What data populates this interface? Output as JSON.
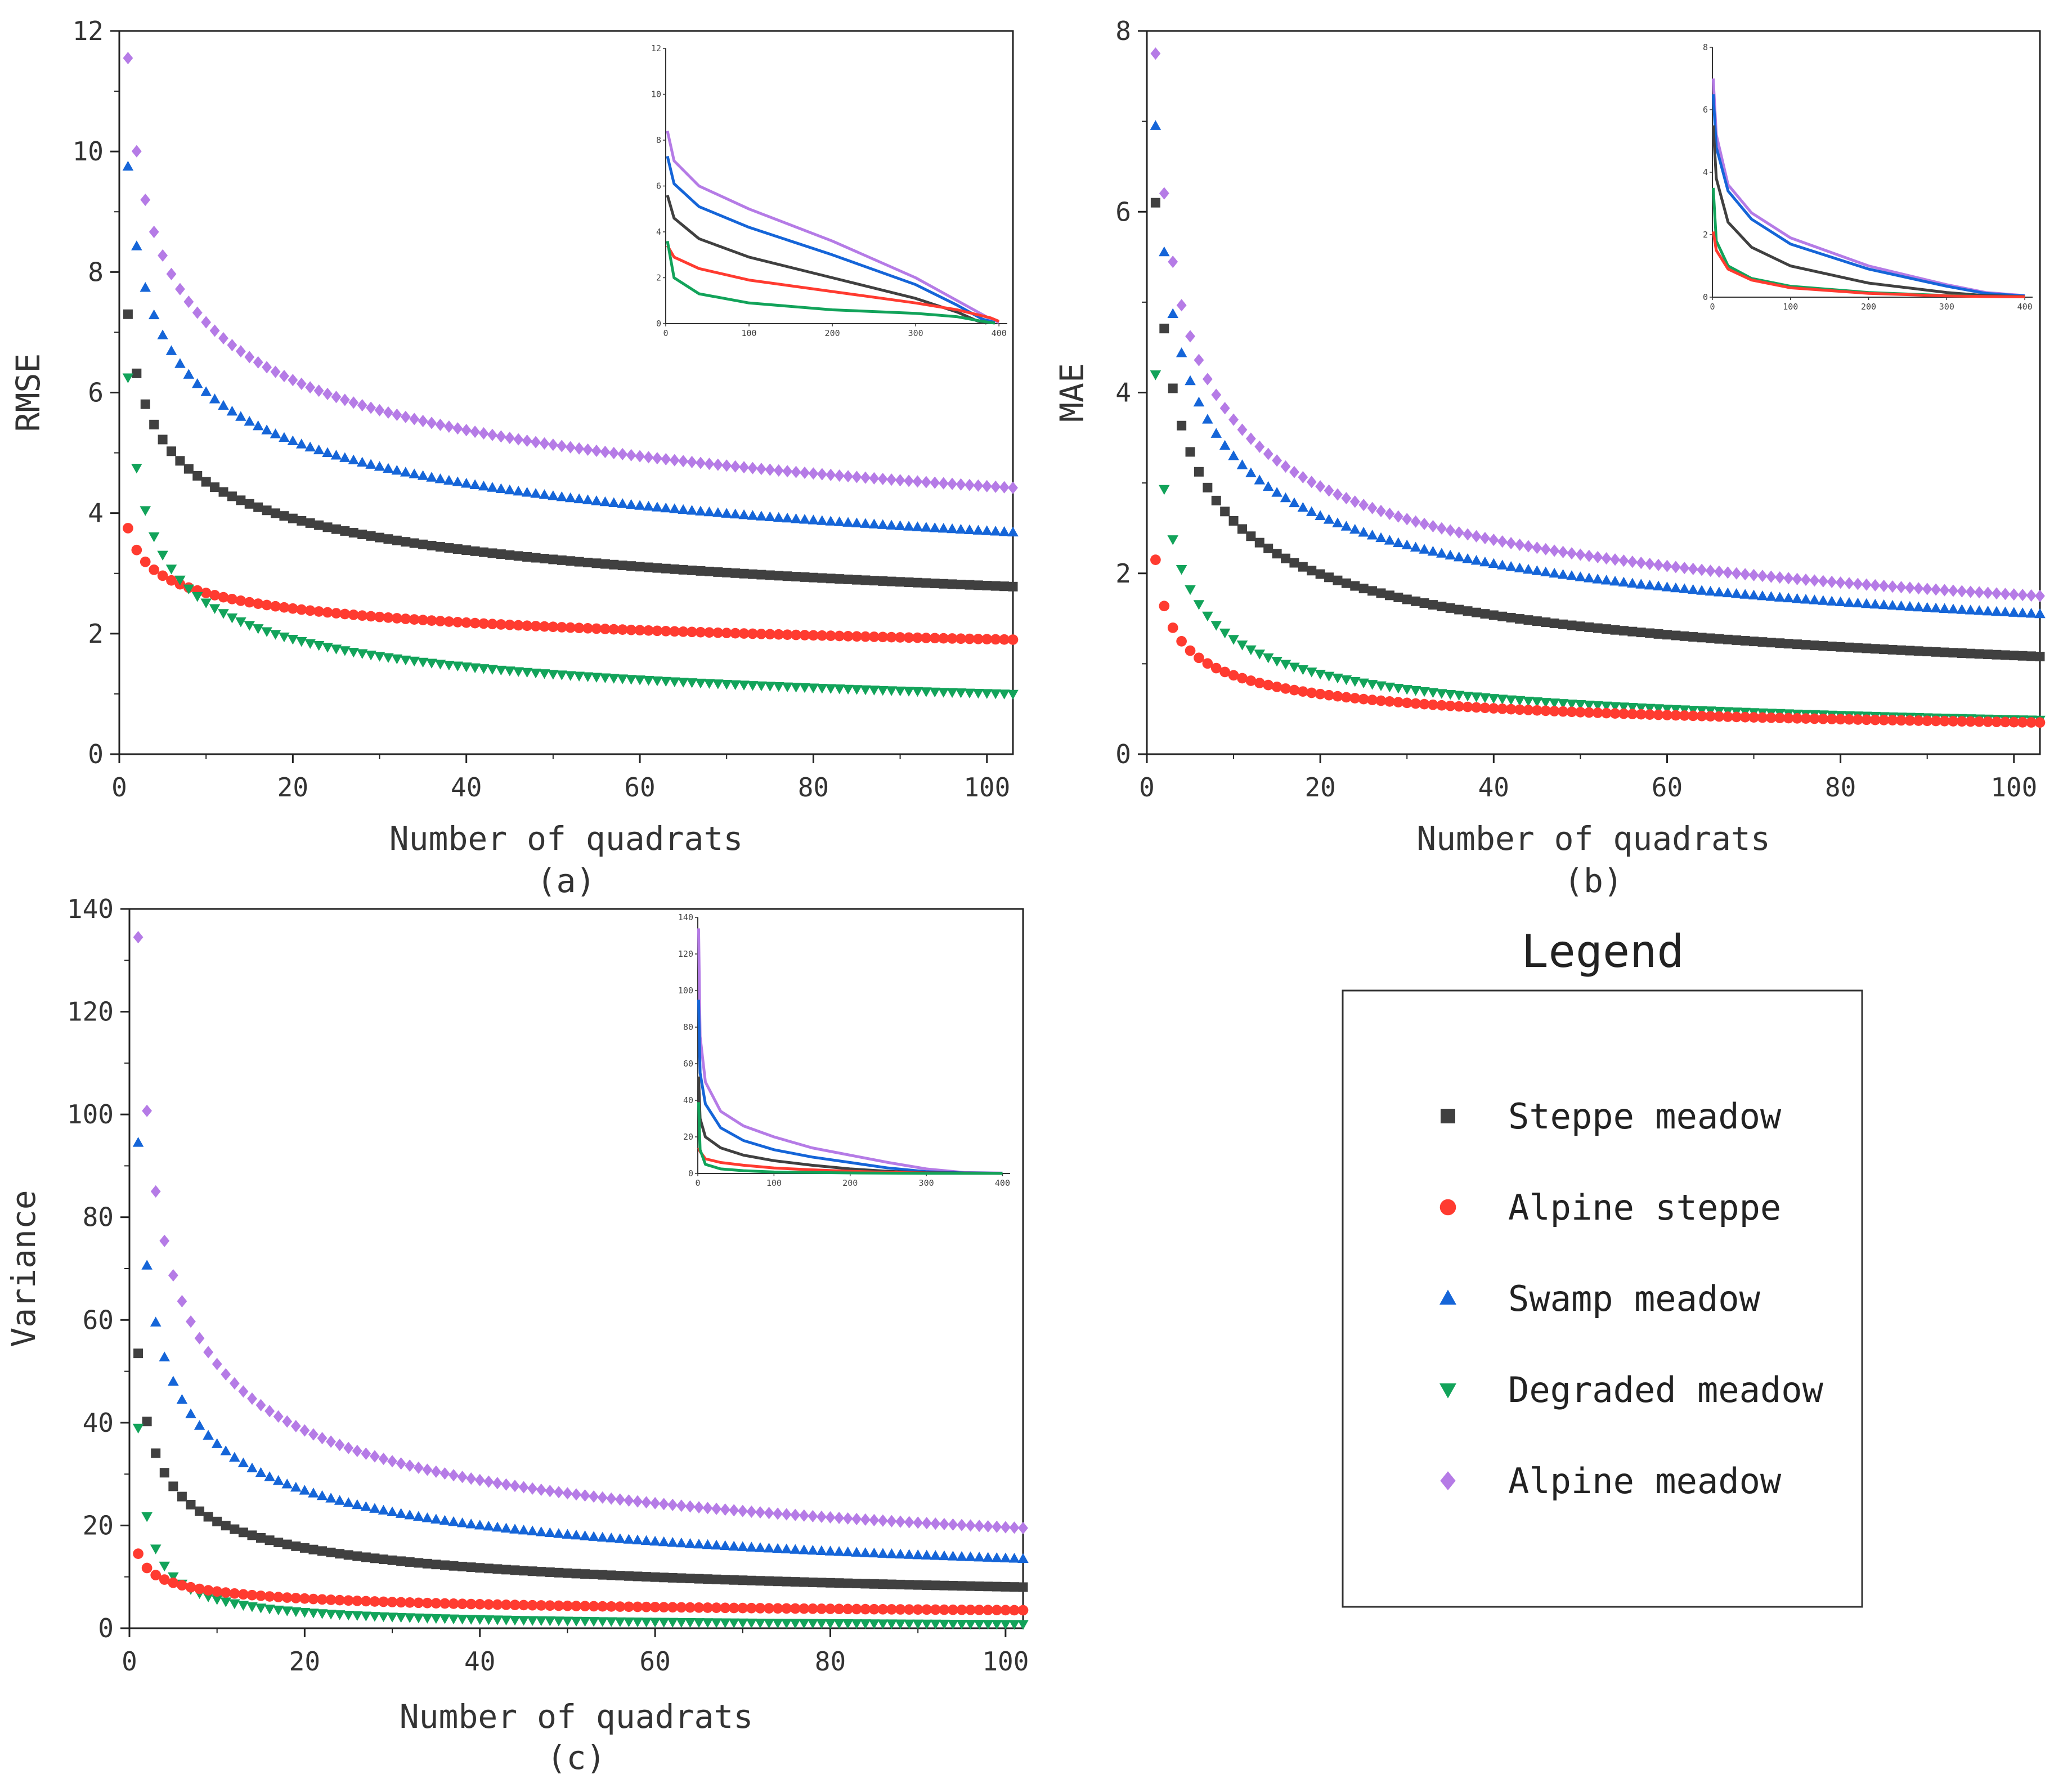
{
  "colors": {
    "steppe_meadow": "#404040",
    "alpine_steppe": "#ff3b30",
    "swamp_meadow": "#1565d8",
    "degraded_meadow": "#12a35a",
    "alpine_meadow": "#b57be6"
  },
  "legend": {
    "title": "Legend",
    "items": [
      {
        "key": "steppe_meadow",
        "label": "Steppe meadow",
        "marker": "square"
      },
      {
        "key": "alpine_steppe",
        "label": "Alpine steppe",
        "marker": "circle"
      },
      {
        "key": "swamp_meadow",
        "label": "Swamp meadow",
        "marker": "triangle-up"
      },
      {
        "key": "degraded_meadow",
        "label": "Degraded meadow",
        "marker": "triangle-down"
      },
      {
        "key": "alpine_meadow",
        "label": "Alpine meadow",
        "marker": "diamond"
      }
    ]
  },
  "chart_data": [
    {
      "id": "a",
      "type": "scatter",
      "caption": "(a)",
      "xlabel": "Number of quadrats",
      "ylabel": "RMSE",
      "xlim": [
        0,
        103
      ],
      "ylim": [
        0,
        12
      ],
      "xticks": [
        0,
        20,
        40,
        60,
        80,
        100
      ],
      "yticks": [
        0,
        2,
        4,
        6,
        8,
        10,
        12
      ],
      "n_points": 103,
      "series_model": "y(n) = v1 * n^(-p) for n = 1..103",
      "series": [
        {
          "key": "alpine_meadow",
          "name": "Alpine meadow",
          "v1": 11.55,
          "v103": 4.42
        },
        {
          "key": "swamp_meadow",
          "name": "Swamp meadow",
          "v1": 9.75,
          "v103": 3.68
        },
        {
          "key": "steppe_meadow",
          "name": "Steppe meadow",
          "v1": 7.3,
          "v103": 2.78
        },
        {
          "key": "alpine_steppe",
          "name": "Alpine steppe",
          "v1": 3.75,
          "v103": 1.9
        },
        {
          "key": "degraded_meadow",
          "name": "Degraded meadow",
          "v1": 6.25,
          "v103": 1.0
        }
      ],
      "inset": {
        "xlim": [
          0,
          410
        ],
        "ylim": [
          0,
          12
        ],
        "xticks": [
          0,
          100,
          200,
          300,
          400
        ],
        "yticks": [
          0,
          2,
          4,
          6,
          8,
          10,
          12
        ],
        "series": [
          {
            "key": "alpine_meadow",
            "points": [
              [
                2,
                8.4
              ],
              [
                10,
                7.1
              ],
              [
                40,
                6.0
              ],
              [
                100,
                5.0
              ],
              [
                200,
                3.6
              ],
              [
                300,
                2.0
              ],
              [
                350,
                1.0
              ],
              [
                390,
                0.2
              ],
              [
                400,
                0.05
              ]
            ]
          },
          {
            "key": "swamp_meadow",
            "points": [
              [
                2,
                7.3
              ],
              [
                10,
                6.1
              ],
              [
                40,
                5.1
              ],
              [
                100,
                4.2
              ],
              [
                200,
                3.0
              ],
              [
                300,
                1.7
              ],
              [
                350,
                0.8
              ],
              [
                380,
                0.2
              ],
              [
                395,
                0.05
              ]
            ]
          },
          {
            "key": "steppe_meadow",
            "points": [
              [
                2,
                5.6
              ],
              [
                10,
                4.6
              ],
              [
                40,
                3.7
              ],
              [
                100,
                2.9
              ],
              [
                200,
                2.0
              ],
              [
                300,
                1.1
              ],
              [
                350,
                0.5
              ],
              [
                375,
                0.1
              ],
              [
                385,
                0.02
              ]
            ]
          },
          {
            "key": "alpine_steppe",
            "points": [
              [
                2,
                3.4
              ],
              [
                10,
                2.9
              ],
              [
                40,
                2.4
              ],
              [
                100,
                1.9
              ],
              [
                200,
                1.4
              ],
              [
                300,
                0.9
              ],
              [
                350,
                0.6
              ],
              [
                390,
                0.25
              ],
              [
                400,
                0.1
              ]
            ]
          },
          {
            "key": "degraded_meadow",
            "points": [
              [
                2,
                3.6
              ],
              [
                10,
                2.0
              ],
              [
                40,
                1.3
              ],
              [
                100,
                0.9
              ],
              [
                200,
                0.6
              ],
              [
                300,
                0.45
              ],
              [
                350,
                0.3
              ],
              [
                380,
                0.1
              ],
              [
                395,
                0.02
              ]
            ]
          }
        ]
      }
    },
    {
      "id": "b",
      "type": "scatter",
      "caption": "(b)",
      "xlabel": "Number of quadrats",
      "ylabel": "MAE",
      "xlim": [
        0,
        103
      ],
      "ylim": [
        0,
        8
      ],
      "xticks": [
        0,
        20,
        40,
        60,
        80,
        100
      ],
      "yticks": [
        0,
        2,
        4,
        6,
        8
      ],
      "n_points": 103,
      "series_model": "y(n) = v1 * n^(-p) for n = 1..103",
      "series": [
        {
          "key": "alpine_meadow",
          "name": "Alpine meadow",
          "v1": 7.75,
          "v103": 1.75
        },
        {
          "key": "swamp_meadow",
          "name": "Swamp meadow",
          "v1": 6.95,
          "v103": 1.55
        },
        {
          "key": "steppe_meadow",
          "name": "Steppe meadow",
          "v1": 6.1,
          "v103": 1.08
        },
        {
          "key": "degraded_meadow",
          "name": "Degraded meadow",
          "v1": 4.2,
          "v103": 0.38
        },
        {
          "key": "alpine_steppe",
          "name": "Alpine steppe",
          "v1": 2.15,
          "v103": 0.35
        }
      ],
      "inset": {
        "xlim": [
          0,
          410
        ],
        "ylim": [
          0,
          8
        ],
        "xticks": [
          0,
          100,
          200,
          300,
          400
        ],
        "yticks": [
          0,
          2,
          4,
          6,
          8
        ],
        "series": [
          {
            "key": "alpine_meadow",
            "points": [
              [
                1,
                7.0
              ],
              [
                5,
                5.2
              ],
              [
                20,
                3.6
              ],
              [
                50,
                2.7
              ],
              [
                100,
                1.9
              ],
              [
                200,
                1.0
              ],
              [
                300,
                0.4
              ],
              [
                350,
                0.15
              ],
              [
                400,
                0.05
              ]
            ]
          },
          {
            "key": "swamp_meadow",
            "points": [
              [
                1,
                6.5
              ],
              [
                5,
                4.8
              ],
              [
                20,
                3.4
              ],
              [
                50,
                2.5
              ],
              [
                100,
                1.7
              ],
              [
                200,
                0.9
              ],
              [
                300,
                0.35
              ],
              [
                350,
                0.12
              ],
              [
                400,
                0.04
              ]
            ]
          },
          {
            "key": "steppe_meadow",
            "points": [
              [
                1,
                5.5
              ],
              [
                5,
                3.8
              ],
              [
                20,
                2.4
              ],
              [
                50,
                1.6
              ],
              [
                100,
                1.0
              ],
              [
                200,
                0.45
              ],
              [
                300,
                0.15
              ],
              [
                350,
                0.05
              ],
              [
                400,
                0.02
              ]
            ]
          },
          {
            "key": "degraded_meadow",
            "points": [
              [
                1,
                3.5
              ],
              [
                5,
                1.8
              ],
              [
                20,
                1.0
              ],
              [
                50,
                0.6
              ],
              [
                100,
                0.35
              ],
              [
                200,
                0.15
              ],
              [
                300,
                0.05
              ],
              [
                350,
                0.02
              ],
              [
                400,
                0.01
              ]
            ]
          },
          {
            "key": "alpine_steppe",
            "points": [
              [
                1,
                2.1
              ],
              [
                5,
                1.5
              ],
              [
                20,
                0.9
              ],
              [
                50,
                0.55
              ],
              [
                100,
                0.3
              ],
              [
                200,
                0.12
              ],
              [
                300,
                0.04
              ],
              [
                350,
                0.02
              ],
              [
                400,
                0.01
              ]
            ]
          }
        ]
      }
    },
    {
      "id": "c",
      "type": "scatter",
      "caption": "(c)",
      "xlabel": "Number of quadrats",
      "ylabel": "Variance",
      "xlim": [
        0,
        102
      ],
      "ylim": [
        0,
        140
      ],
      "xticks": [
        0,
        20,
        40,
        60,
        80,
        100
      ],
      "yticks": [
        0,
        20,
        40,
        60,
        80,
        100,
        120,
        140
      ],
      "n_points": 102,
      "series_model": "y(n) = v1 * n^(-p) for n = 1..102",
      "series": [
        {
          "key": "alpine_meadow",
          "name": "Alpine meadow",
          "v1": 134.5,
          "v103": 19.5
        },
        {
          "key": "swamp_meadow",
          "name": "Swamp meadow",
          "v1": 94.5,
          "v103": 13.5
        },
        {
          "key": "steppe_meadow",
          "name": "Steppe meadow",
          "v1": 53.5,
          "v103": 8.0
        },
        {
          "key": "degraded_meadow",
          "name": "Degraded meadow",
          "v1": 39.0,
          "v103": 0.8
        },
        {
          "key": "alpine_steppe",
          "name": "Alpine steppe",
          "v1": 14.5,
          "v103": 3.5
        }
      ],
      "inset": {
        "xlim": [
          0,
          410
        ],
        "ylim": [
          0,
          140
        ],
        "xticks": [
          0,
          100,
          200,
          300,
          400
        ],
        "yticks": [
          0,
          20,
          40,
          60,
          80,
          100,
          120,
          140
        ],
        "series": [
          {
            "key": "alpine_meadow",
            "points": [
              [
                1,
                134
              ],
              [
                3,
                75
              ],
              [
                10,
                50
              ],
              [
                30,
                34
              ],
              [
                60,
                26
              ],
              [
                100,
                20
              ],
              [
                150,
                14
              ],
              [
                200,
                10
              ],
              [
                250,
                6
              ],
              [
                300,
                2.5
              ],
              [
                350,
                0.5
              ],
              [
                400,
                0.2
              ]
            ]
          },
          {
            "key": "swamp_meadow",
            "points": [
              [
                1,
                95
              ],
              [
                3,
                55
              ],
              [
                10,
                38
              ],
              [
                30,
                25
              ],
              [
                60,
                18
              ],
              [
                100,
                13
              ],
              [
                150,
                9
              ],
              [
                200,
                6
              ],
              [
                250,
                3
              ],
              [
                300,
                1
              ],
              [
                350,
                0.3
              ],
              [
                400,
                0.1
              ]
            ]
          },
          {
            "key": "steppe_meadow",
            "points": [
              [
                1,
                53
              ],
              [
                3,
                30
              ],
              [
                10,
                20
              ],
              [
                30,
                14
              ],
              [
                60,
                10
              ],
              [
                100,
                7
              ],
              [
                150,
                4.5
              ],
              [
                200,
                2.5
              ],
              [
                250,
                1.2
              ],
              [
                300,
                0.4
              ],
              [
                400,
                0.1
              ]
            ]
          },
          {
            "key": "alpine_steppe",
            "points": [
              [
                1,
                14
              ],
              [
                3,
                12
              ],
              [
                10,
                8
              ],
              [
                30,
                6
              ],
              [
                60,
                4.5
              ],
              [
                100,
                3
              ],
              [
                150,
                2
              ],
              [
                200,
                1.2
              ],
              [
                250,
                0.6
              ],
              [
                300,
                0.2
              ],
              [
                400,
                0.05
              ]
            ]
          },
          {
            "key": "degraded_meadow",
            "points": [
              [
                1,
                39
              ],
              [
                3,
                13
              ],
              [
                10,
                5
              ],
              [
                30,
                2.5
              ],
              [
                60,
                1.5
              ],
              [
                100,
                0.8
              ],
              [
                200,
                0.3
              ],
              [
                300,
                0.1
              ],
              [
                400,
                0.05
              ]
            ]
          }
        ]
      }
    }
  ]
}
